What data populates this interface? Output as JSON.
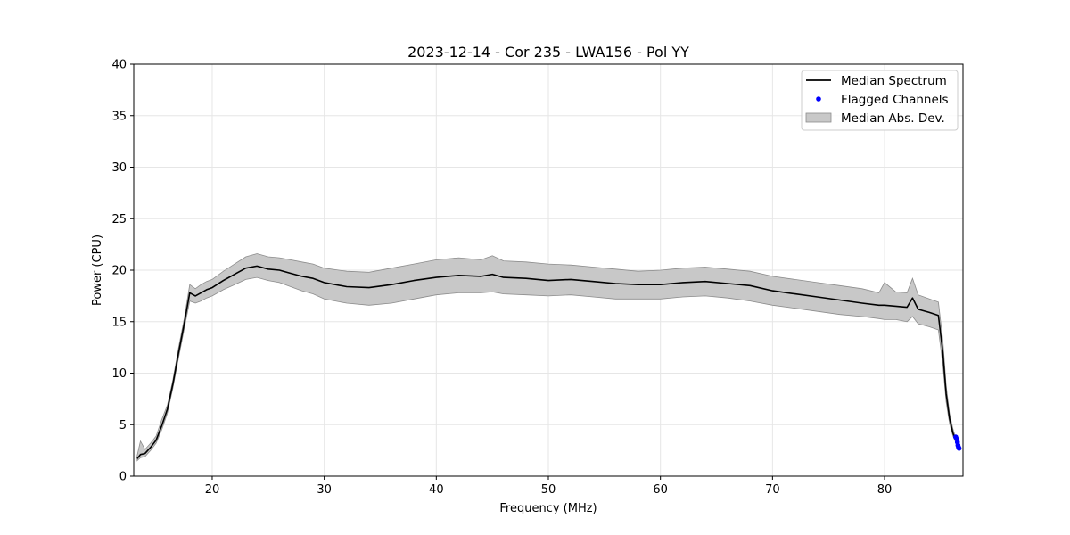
{
  "chart_data": {
    "type": "line",
    "title": "2023-12-14 - Cor 235 - LWA156 - Pol YY",
    "xlabel": "Frequency (MHz)",
    "ylabel": "Power (CPU)",
    "xlim": [
      13,
      87
    ],
    "ylim": [
      0,
      40
    ],
    "xticks": [
      20,
      30,
      40,
      50,
      60,
      70,
      80
    ],
    "yticks": [
      0,
      5,
      10,
      15,
      20,
      25,
      30,
      35,
      40
    ],
    "grid": true,
    "legend_position": "top-right",
    "colors": {
      "median": "#000000",
      "flagged": "#0000ff",
      "band_fill": "#c8c8c8",
      "band_edge": "#8c8c8c"
    },
    "series": [
      {
        "name": "Median Spectrum",
        "kind": "line",
        "x": [
          13.3,
          13.6,
          14.0,
          14.5,
          15.0,
          15.5,
          16.0,
          16.5,
          17.0,
          17.5,
          18.0,
          18.5,
          19.0,
          19.5,
          20.0,
          21.0,
          22.0,
          23.0,
          24.0,
          25.0,
          26.0,
          27.0,
          28.0,
          29.0,
          30.0,
          32.0,
          34.0,
          36.0,
          38.0,
          40.0,
          42.0,
          44.0,
          45.0,
          46.0,
          48.0,
          50.0,
          52.0,
          54.0,
          56.0,
          58.0,
          60.0,
          62.0,
          64.0,
          66.0,
          68.0,
          70.0,
          72.0,
          74.0,
          76.0,
          78.0,
          79.5,
          80.0,
          81.0,
          82.0,
          82.5,
          83.0,
          84.0,
          84.8,
          85.2,
          85.5,
          85.8,
          86.1,
          86.3
        ],
        "y": [
          1.7,
          2.1,
          2.2,
          2.8,
          3.5,
          4.9,
          6.5,
          9.0,
          12.0,
          14.8,
          17.8,
          17.5,
          17.8,
          18.1,
          18.3,
          19.0,
          19.6,
          20.2,
          20.4,
          20.1,
          20.0,
          19.7,
          19.4,
          19.2,
          18.8,
          18.4,
          18.3,
          18.6,
          19.0,
          19.3,
          19.5,
          19.4,
          19.6,
          19.3,
          19.2,
          19.0,
          19.1,
          18.9,
          18.7,
          18.6,
          18.6,
          18.8,
          18.9,
          18.7,
          18.5,
          18.0,
          17.7,
          17.4,
          17.1,
          16.8,
          16.6,
          16.6,
          16.5,
          16.4,
          17.3,
          16.2,
          15.9,
          15.6,
          12.0,
          8.0,
          5.6,
          4.2,
          3.6
        ]
      },
      {
        "name": "Flagged Channels",
        "kind": "scatter",
        "x": [
          86.35,
          86.45,
          86.5,
          86.55,
          86.6,
          86.65
        ],
        "y": [
          3.8,
          3.6,
          3.3,
          3.0,
          2.8,
          2.7
        ]
      },
      {
        "name": "Median Abs. Dev.",
        "kind": "band",
        "x": [
          13.3,
          13.6,
          14.0,
          14.5,
          15.0,
          15.5,
          16.0,
          16.5,
          17.0,
          17.5,
          18.0,
          18.5,
          19.0,
          19.5,
          20.0,
          21.0,
          22.0,
          23.0,
          24.0,
          25.0,
          26.0,
          27.0,
          28.0,
          29.0,
          30.0,
          32.0,
          34.0,
          36.0,
          38.0,
          40.0,
          42.0,
          44.0,
          45.0,
          46.0,
          48.0,
          50.0,
          52.0,
          54.0,
          56.0,
          58.0,
          60.0,
          62.0,
          64.0,
          66.0,
          68.0,
          70.0,
          72.0,
          74.0,
          76.0,
          78.0,
          79.5,
          80.0,
          81.0,
          82.0,
          82.5,
          83.0,
          84.0,
          84.8,
          85.2,
          85.5,
          85.8,
          86.1,
          86.3
        ],
        "lower": [
          1.5,
          1.8,
          1.9,
          2.5,
          3.2,
          4.5,
          6.1,
          8.6,
          11.5,
          14.3,
          17.0,
          16.8,
          17.0,
          17.3,
          17.5,
          18.1,
          18.6,
          19.1,
          19.3,
          19.0,
          18.8,
          18.4,
          18.0,
          17.7,
          17.2,
          16.8,
          16.6,
          16.8,
          17.2,
          17.6,
          17.8,
          17.8,
          17.9,
          17.7,
          17.6,
          17.5,
          17.6,
          17.4,
          17.2,
          17.2,
          17.2,
          17.4,
          17.5,
          17.3,
          17.0,
          16.6,
          16.3,
          16.0,
          15.7,
          15.5,
          15.3,
          15.2,
          15.2,
          15.0,
          15.5,
          14.8,
          14.5,
          14.2,
          10.8,
          7.2,
          5.1,
          3.9,
          3.4
        ],
        "upper": [
          2.0,
          3.4,
          2.6,
          3.2,
          3.9,
          5.5,
          6.9,
          9.4,
          12.5,
          15.3,
          18.6,
          18.2,
          18.6,
          18.9,
          19.1,
          19.9,
          20.6,
          21.3,
          21.6,
          21.3,
          21.2,
          21.0,
          20.8,
          20.6,
          20.2,
          19.9,
          19.8,
          20.2,
          20.6,
          21.0,
          21.2,
          21.0,
          21.4,
          20.9,
          20.8,
          20.6,
          20.5,
          20.3,
          20.1,
          19.9,
          20.0,
          20.2,
          20.3,
          20.1,
          19.9,
          19.4,
          19.1,
          18.8,
          18.5,
          18.2,
          17.8,
          18.8,
          17.9,
          17.8,
          19.2,
          17.6,
          17.2,
          16.9,
          13.2,
          8.8,
          6.1,
          4.6,
          3.9
        ]
      }
    ]
  }
}
